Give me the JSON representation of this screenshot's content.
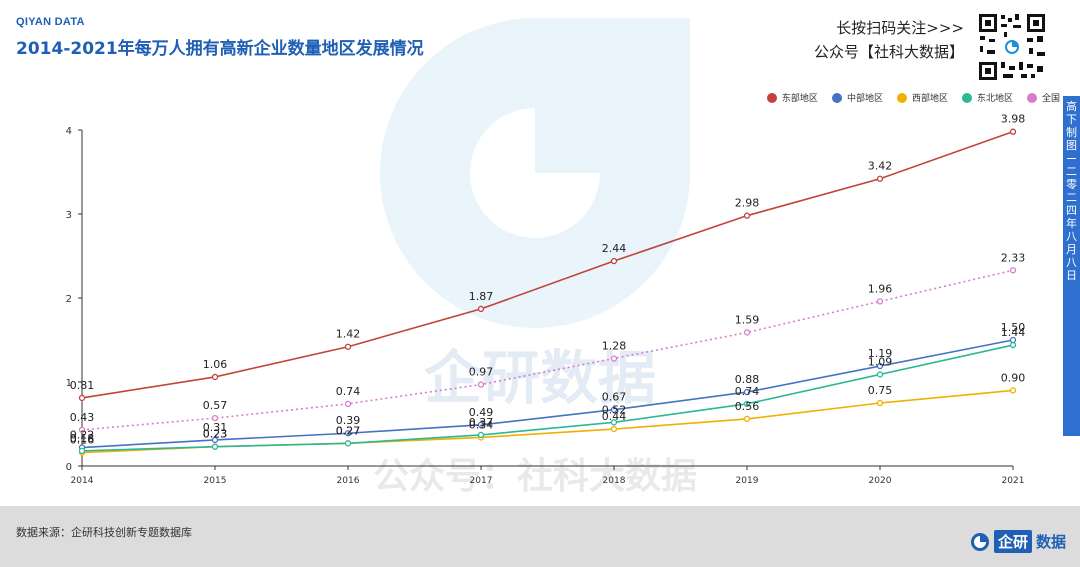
{
  "header": {
    "brand": "QIYAN DATA",
    "title": "2014-2021年每万人拥有高新企业数量地区发展情况",
    "promo_line1": "长按扫码关注>>>",
    "promo_line2": "公众号【社科大数据】"
  },
  "side_tab": {
    "top": "高下制图",
    "bottom": "二零二四年八月八日"
  },
  "footer": {
    "source": "数据来源：企研科技创新专题数据库",
    "logo_name": "企研",
    "logo_suffix": "数据"
  },
  "colors": {
    "title": "#1f5fb4",
    "east": "#c0443a",
    "central": "#4472c4",
    "west": "#f0b000",
    "northeast": "#2bb897",
    "national": "#d97bcf",
    "footer_bg": "#dcdcdc",
    "axis": "#333333"
  },
  "icons": {
    "qr": "qr-code-icon",
    "logo": "qiyan-logo-icon"
  },
  "chart_data": {
    "type": "line",
    "title": "2014-2021年每万人拥有高新企业数量地区发展情况",
    "xlabel": "",
    "ylabel": "",
    "x": [
      "2014",
      "2015",
      "2016",
      "2017",
      "2018",
      "2019",
      "2020",
      "2021"
    ],
    "ylim": [
      0,
      4
    ],
    "yticks": [
      0,
      1,
      2,
      3,
      4
    ],
    "grid": false,
    "legend_position": "top-right",
    "series": [
      {
        "name": "东部地区",
        "color": "#c0443a",
        "style": "solid",
        "labeled": true,
        "values": [
          0.81,
          1.06,
          1.42,
          1.87,
          2.44,
          2.98,
          3.42,
          3.98
        ]
      },
      {
        "name": "中部地区",
        "color": "#4472c4",
        "style": "solid",
        "labeled": true,
        "values": [
          0.22,
          0.31,
          0.39,
          0.49,
          0.67,
          0.88,
          1.19,
          1.5
        ]
      },
      {
        "name": "西部地区",
        "color": "#f0b000",
        "style": "solid",
        "labeled": true,
        "values": [
          0.16,
          0.23,
          0.27,
          0.34,
          0.44,
          0.56,
          0.75,
          0.9
        ]
      },
      {
        "name": "东北地区",
        "color": "#2bb897",
        "style": "solid",
        "labeled": true,
        "values": [
          0.18,
          0.23,
          0.27,
          0.37,
          0.52,
          0.74,
          1.09,
          1.44
        ]
      },
      {
        "name": "全国",
        "color": "#d97bcf",
        "style": "dotted",
        "labeled": true,
        "values": [
          0.43,
          0.57,
          0.74,
          0.97,
          1.28,
          1.59,
          1.96,
          2.33
        ]
      }
    ]
  },
  "watermark": {
    "line1": "企研数据",
    "line2": "公众号：社科大数据"
  }
}
